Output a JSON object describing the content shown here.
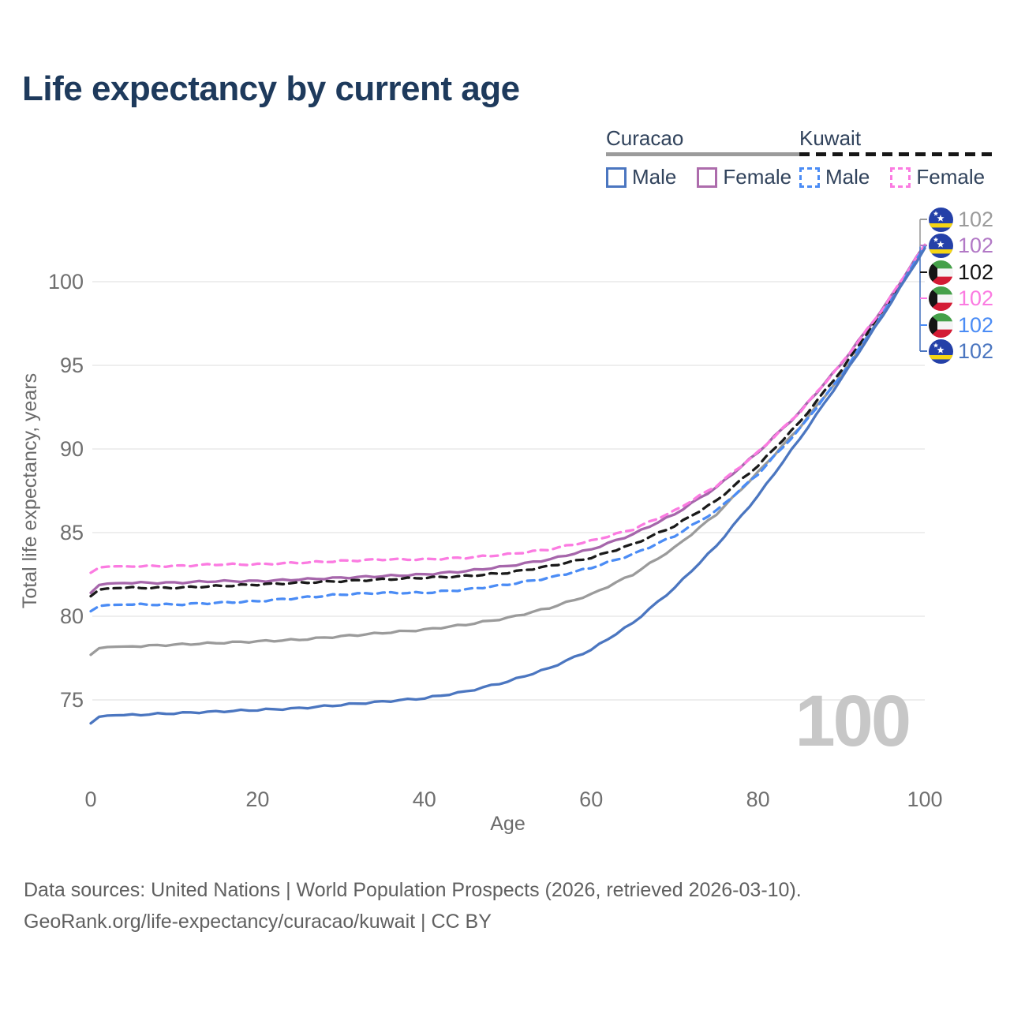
{
  "title": "Life expectancy by current age",
  "legend": {
    "groups": [
      {
        "name": "Curacao",
        "line_style": "solid",
        "line_color": "#9b9b9b",
        "items": [
          {
            "label": "Male",
            "color": "#4b76c0",
            "dashed": false
          },
          {
            "label": "Female",
            "color": "#ad6cac",
            "dashed": false
          }
        ]
      },
      {
        "name": "Kuwait",
        "line_style": "dashed",
        "line_color": "#161616",
        "items": [
          {
            "label": "Male",
            "color": "#4b8cf5",
            "dashed": true
          },
          {
            "label": "Female",
            "color": "#fb7be1",
            "dashed": true
          }
        ]
      }
    ]
  },
  "chart_data": {
    "type": "line",
    "title": "Life expectancy by current age",
    "xlabel": "Age",
    "ylabel": "Total life expectancy, years",
    "x": [
      0,
      5,
      10,
      15,
      20,
      25,
      30,
      35,
      40,
      45,
      50,
      55,
      60,
      65,
      70,
      75,
      80,
      85,
      90,
      95,
      100
    ],
    "xticks": [
      0,
      20,
      40,
      60,
      80,
      100
    ],
    "yticks": [
      75,
      80,
      85,
      90,
      95,
      100
    ],
    "xlim": [
      0,
      100
    ],
    "ylim": [
      73,
      103
    ],
    "grid": "horizontal",
    "legend_position": "top-right",
    "series": [
      {
        "name": "Curacao — Both sexes",
        "country": "Curacao",
        "sex": "Both",
        "color": "#9b9b9b",
        "dashed": false,
        "end_label": "102",
        "values": [
          77.7,
          78.2,
          78.3,
          78.4,
          78.5,
          78.6,
          78.8,
          79.0,
          79.2,
          79.5,
          79.9,
          80.5,
          81.3,
          82.5,
          84.1,
          86.1,
          88.6,
          91.3,
          94.4,
          98.1,
          102.1
        ]
      },
      {
        "name": "Curacao — Female",
        "country": "Curacao",
        "sex": "Female",
        "color": "#a666ab",
        "dashed": false,
        "end_label": "102",
        "values": [
          81.4,
          82.0,
          82.0,
          82.1,
          82.1,
          82.2,
          82.3,
          82.4,
          82.5,
          82.7,
          83.0,
          83.4,
          84.0,
          84.9,
          86.1,
          87.7,
          89.8,
          92.2,
          95.1,
          98.4,
          102.2
        ]
      },
      {
        "name": "Kuwait — Both sexes",
        "country": "Kuwait",
        "sex": "Both",
        "color": "#1a1a1a",
        "dashed": true,
        "end_label": "102",
        "values": [
          81.2,
          81.7,
          81.7,
          81.8,
          81.9,
          82.0,
          82.1,
          82.2,
          82.3,
          82.4,
          82.6,
          83.0,
          83.5,
          84.3,
          85.4,
          86.9,
          89.0,
          91.6,
          94.7,
          98.3,
          102.1
        ]
      },
      {
        "name": "Kuwait — Female",
        "country": "Kuwait",
        "sex": "Female",
        "color": "#fb7be1",
        "dashed": true,
        "end_label": "102",
        "values": [
          82.6,
          83.0,
          83.0,
          83.1,
          83.1,
          83.2,
          83.3,
          83.4,
          83.4,
          83.5,
          83.7,
          84.0,
          84.5,
          85.2,
          86.3,
          87.8,
          89.8,
          92.2,
          95.1,
          98.4,
          102.2
        ]
      },
      {
        "name": "Kuwait — Male",
        "country": "Kuwait",
        "sex": "Male",
        "color": "#4b8cf5",
        "dashed": true,
        "end_label": "102",
        "values": [
          80.3,
          80.7,
          80.7,
          80.8,
          80.9,
          81.1,
          81.3,
          81.4,
          81.4,
          81.6,
          81.9,
          82.3,
          82.9,
          83.7,
          84.8,
          86.3,
          88.5,
          91.2,
          94.4,
          98.1,
          102.1
        ]
      },
      {
        "name": "Curacao — Male",
        "country": "Curacao",
        "sex": "Male",
        "color": "#4b76c0",
        "dashed": false,
        "end_label": "102",
        "values": [
          73.6,
          74.1,
          74.2,
          74.3,
          74.4,
          74.5,
          74.7,
          74.9,
          75.1,
          75.5,
          76.1,
          76.9,
          78.0,
          79.6,
          81.7,
          84.2,
          87.2,
          90.6,
          94.2,
          98.0,
          102.0
        ]
      }
    ]
  },
  "end_labels": [
    {
      "flag": "curacao",
      "value": "102",
      "color": "#9b9b9b",
      "series": "Curacao — Both sexes"
    },
    {
      "flag": "curacao",
      "value": "102",
      "color": "#b279c6",
      "series": "Curacao — Female"
    },
    {
      "flag": "kuwait",
      "value": "102",
      "color": "#141414",
      "series": "Kuwait — Both sexes"
    },
    {
      "flag": "kuwait",
      "value": "102",
      "color": "#fb7be1",
      "series": "Kuwait — Female"
    },
    {
      "flag": "kuwait",
      "value": "102",
      "color": "#4b8cf5",
      "series": "Kuwait — Male"
    },
    {
      "flag": "curacao",
      "value": "102",
      "color": "#4b76c0",
      "series": "Curacao — Male"
    }
  ],
  "watermark": "100",
  "footer": {
    "line1": "Data sources: United Nations | World Population Prospects (2026, retrieved 2026-03-10).",
    "line2": "GeoRank.org/life-expectancy/curacao/kuwait | CC BY"
  }
}
